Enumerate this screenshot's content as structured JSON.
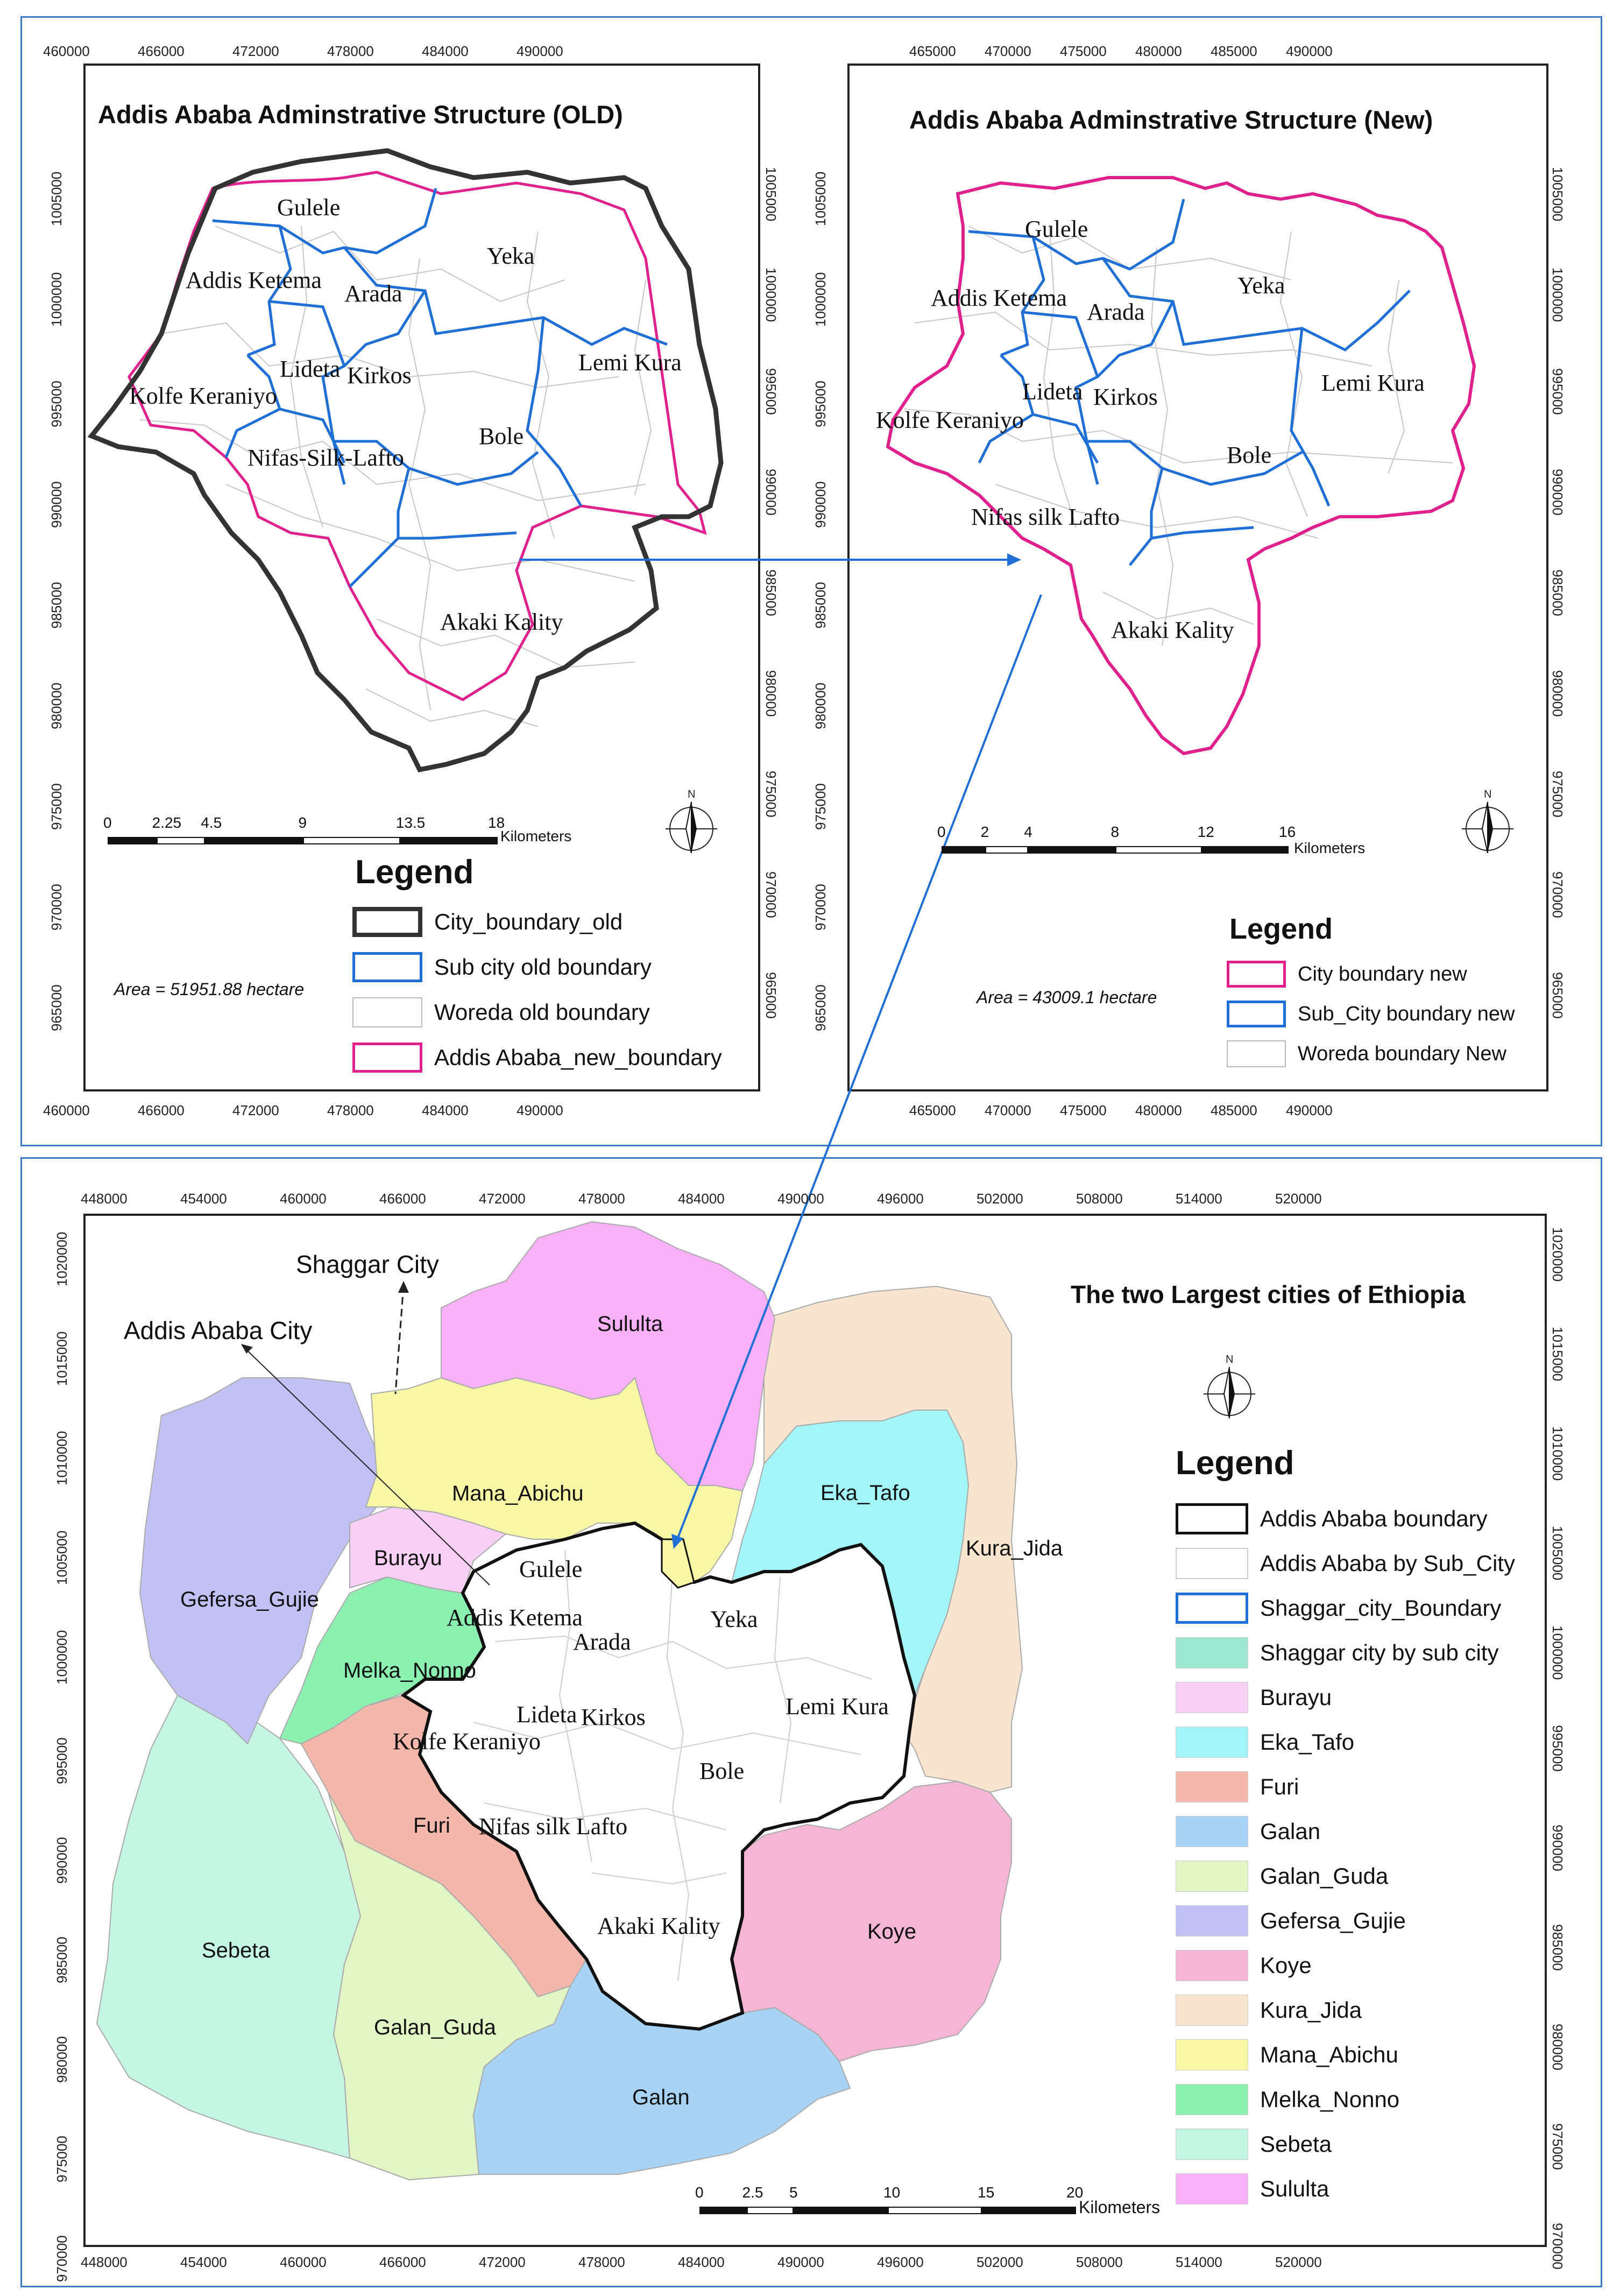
{
  "top_left": {
    "title": "Addis Ababa Adminstrative Structure (OLD)",
    "x_ticks": [
      "460000",
      "466000",
      "472000",
      "478000",
      "484000",
      "490000"
    ],
    "y_ticks": [
      "1005000",
      "1000000",
      "995000",
      "990000",
      "985000",
      "980000",
      "975000",
      "970000",
      "965000"
    ],
    "labels": [
      "Gulele",
      "Addis Ketema",
      "Arada",
      "Yeka",
      "Lideta",
      "Kirkos",
      "Lemi Kura",
      "Kolfe Keraniyo",
      "Bole",
      "Nifas-Silk-Lafto",
      "Akaki Kality"
    ],
    "scale": [
      "0",
      "2.25",
      "4.5",
      "9",
      "13.5",
      "18"
    ],
    "scale_unit": "Kilometers",
    "area": "Area = 51951.88 hectare",
    "legend_title": "Legend",
    "legend": [
      {
        "label": "City_boundary_old",
        "color": "#333333",
        "style": "thick"
      },
      {
        "label": "Sub city old boundary",
        "color": "#1f6fd6",
        "style": "medium"
      },
      {
        "label": "Woreda old boundary",
        "color": "#bbbbbb",
        "style": "thin"
      },
      {
        "label": "Addis Ababa_new_boundary",
        "color": "#e0208c",
        "style": "medium"
      }
    ]
  },
  "top_right": {
    "title": "Addis Ababa Adminstrative Structure (New)",
    "x_ticks": [
      "465000",
      "470000",
      "475000",
      "480000",
      "485000",
      "490000"
    ],
    "y_ticks": [
      "1005000",
      "1000000",
      "995000",
      "990000",
      "985000",
      "980000",
      "975000",
      "970000",
      "965000"
    ],
    "labels": [
      "Gulele",
      "Addis Ketema",
      "Arada",
      "Yeka",
      "Lideta",
      "Kirkos",
      "Lemi Kura",
      "Kolfe Keraniyo",
      "Bole",
      "Nifas silk Lafto",
      "Akaki Kality"
    ],
    "scale": [
      "0",
      "2",
      "4",
      "8",
      "12",
      "16"
    ],
    "scale_unit": "Kilometers",
    "area": "Area = 43009.1 hectare",
    "legend_title": "Legend",
    "legend": [
      {
        "label": "City boundary new",
        "color": "#e0208c",
        "style": "medium"
      },
      {
        "label": "Sub_City boundary new",
        "color": "#1f6fd6",
        "style": "medium"
      },
      {
        "label": "Woreda boundary New",
        "color": "#bbbbbb",
        "style": "thin"
      }
    ]
  },
  "bottom": {
    "title": "The two Largest cities of Ethiopia",
    "x_ticks": [
      "448000",
      "454000",
      "460000",
      "466000",
      "472000",
      "478000",
      "484000",
      "490000",
      "496000",
      "502000",
      "508000",
      "514000",
      "520000"
    ],
    "y_ticks": [
      "1020000",
      "1015000",
      "1010000",
      "1005000",
      "1000000",
      "995000",
      "990000",
      "985000",
      "980000",
      "975000",
      "970000"
    ],
    "callouts": [
      "Shaggar City",
      "Addis Ababa City"
    ],
    "aa_labels": [
      "Gulele",
      "Addis Ketema",
      "Arada",
      "Yeka",
      "Lideta",
      "Kirkos",
      "Lemi Kura",
      "Kolfe Keraniyo",
      "Bole",
      "Nifas silk Lafto",
      "Akaki Kality"
    ],
    "region_labels": [
      "Sululta",
      "Mana_Abichu",
      "Eka_Tafo",
      "Kura_Jida",
      "Burayu",
      "Gefersa_Gujie",
      "Melka_Nonno",
      "Furi",
      "Sebeta",
      "Galan_Guda",
      "Galan",
      "Koye"
    ],
    "scale": [
      "0",
      "2.5",
      "5",
      "10",
      "15",
      "20"
    ],
    "scale_unit": "Kilometers",
    "legend_title": "Legend",
    "legend": [
      {
        "label": "Addis Ababa boundary",
        "color": "#ffffff",
        "border": "#111111",
        "bw": "5"
      },
      {
        "label": "Addis Ababa by Sub_City",
        "color": "#ffffff",
        "border": "#cccccc",
        "bw": "2"
      },
      {
        "label": "Shaggar_city_Boundary",
        "color": "#ffffff",
        "border": "#1f6fd6",
        "bw": "5"
      },
      {
        "label": "Shaggar city by sub city",
        "color": "#9ee8d2",
        "border": "#cccccc",
        "bw": "1"
      },
      {
        "label": "Burayu",
        "color": "#f8cff5",
        "border": "#cccccc",
        "bw": "1"
      },
      {
        "label": "Eka_Tafo",
        "color": "#a3f5f7",
        "border": "#cccccc",
        "bw": "1"
      },
      {
        "label": "Furi",
        "color": "#f4b7ac",
        "border": "#cccccc",
        "bw": "1"
      },
      {
        "label": "Galan",
        "color": "#a8d3f5",
        "border": "#cccccc",
        "bw": "1"
      },
      {
        "label": "Galan_Guda",
        "color": "#e2f5c5",
        "border": "#cccccc",
        "bw": "1"
      },
      {
        "label": "Gefersa_Gujie",
        "color": "#c2c1f5",
        "border": "#cccccc",
        "bw": "1"
      },
      {
        "label": "Koye",
        "color": "#f5b5d5",
        "border": "#cccccc",
        "bw": "1"
      },
      {
        "label": "Kura_Jida",
        "color": "#f8e5cf",
        "border": "#cccccc",
        "bw": "1"
      },
      {
        "label": "Mana_Abichu",
        "color": "#f7f7a6",
        "border": "#cccccc",
        "bw": "1"
      },
      {
        "label": "Melka_Nonno",
        "color": "#8bf0b0",
        "border": "#cccccc",
        "bw": "1"
      },
      {
        "label": "Sebeta",
        "color": "#c5f5e3",
        "border": "#cccccc",
        "bw": "1"
      },
      {
        "label": "Sululta",
        "color": "#f8b0f7",
        "border": "#cccccc",
        "bw": "1"
      }
    ]
  },
  "north_arrow": "N",
  "colors": {
    "frame": "#3a78c9",
    "aa_new": "#e0208c",
    "subcity": "#1f6fd6"
  }
}
